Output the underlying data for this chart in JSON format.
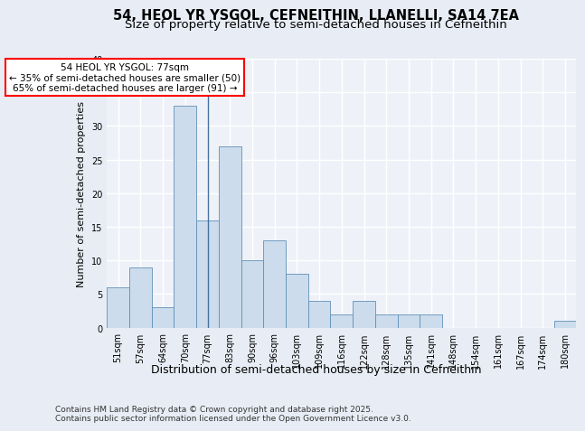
{
  "title": "54, HEOL YR YSGOL, CEFNEITHIN, LLANELLI, SA14 7EA",
  "subtitle": "Size of property relative to semi-detached houses in Cefneithin",
  "xlabel": "Distribution of semi-detached houses by size in Cefneithin",
  "ylabel": "Number of semi-detached properties",
  "categories": [
    "51sqm",
    "57sqm",
    "64sqm",
    "70sqm",
    "77sqm",
    "83sqm",
    "90sqm",
    "96sqm",
    "103sqm",
    "109sqm",
    "116sqm",
    "122sqm",
    "128sqm",
    "135sqm",
    "141sqm",
    "148sqm",
    "154sqm",
    "161sqm",
    "167sqm",
    "174sqm",
    "180sqm"
  ],
  "values": [
    6,
    9,
    3,
    33,
    16,
    27,
    10,
    13,
    8,
    4,
    2,
    4,
    2,
    2,
    2,
    0,
    0,
    0,
    0,
    0,
    1
  ],
  "bar_color": "#ccdcec",
  "bar_edge_color": "#6090b8",
  "subject_line_idx": 4,
  "subject_line_color": "#4472a0",
  "annotation_text": "54 HEOL YR YSGOL: 77sqm\n← 35% of semi-detached houses are smaller (50)\n65% of semi-detached houses are larger (91) →",
  "annotation_box_facecolor": "#ffffff",
  "annotation_box_edgecolor": "red",
  "ylim": [
    0,
    40
  ],
  "yticks": [
    0,
    5,
    10,
    15,
    20,
    25,
    30,
    35,
    40
  ],
  "footer": "Contains HM Land Registry data © Crown copyright and database right 2025.\nContains public sector information licensed under the Open Government Licence v3.0.",
  "bg_color": "#e8edf5",
  "plot_bg_color": "#eef2f8",
  "grid_color": "#ffffff",
  "title_fontsize": 10.5,
  "subtitle_fontsize": 9.5,
  "xlabel_fontsize": 9,
  "ylabel_fontsize": 8,
  "tick_fontsize": 7,
  "annotation_fontsize": 7.5,
  "footer_fontsize": 6.5
}
